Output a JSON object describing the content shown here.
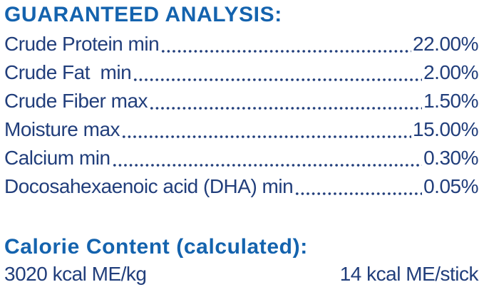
{
  "colors": {
    "heading_blue": "#1463ae",
    "body_navy": "#213e7b",
    "background": "#ffffff"
  },
  "guaranteed_analysis": {
    "title": "GUARANTEED ANALYSIS:",
    "rows": [
      {
        "label": "Crude Protein min",
        "value": "22.00%"
      },
      {
        "label": "Crude Fat  min",
        "value": "2.00%"
      },
      {
        "label": "Crude Fiber max",
        "value": "1.50%"
      },
      {
        "label": "Moisture max",
        "value": "15.00%"
      },
      {
        "label": "Calcium min",
        "value": "0.30%"
      },
      {
        "label": "Docosahexaenoic acid (DHA) min",
        "value": "0.05%"
      }
    ]
  },
  "calorie_content": {
    "title": "Calorie Content (calculated):",
    "per_kg": "3020 kcal ME/kg",
    "per_stick": "14 kcal ME/stick"
  }
}
